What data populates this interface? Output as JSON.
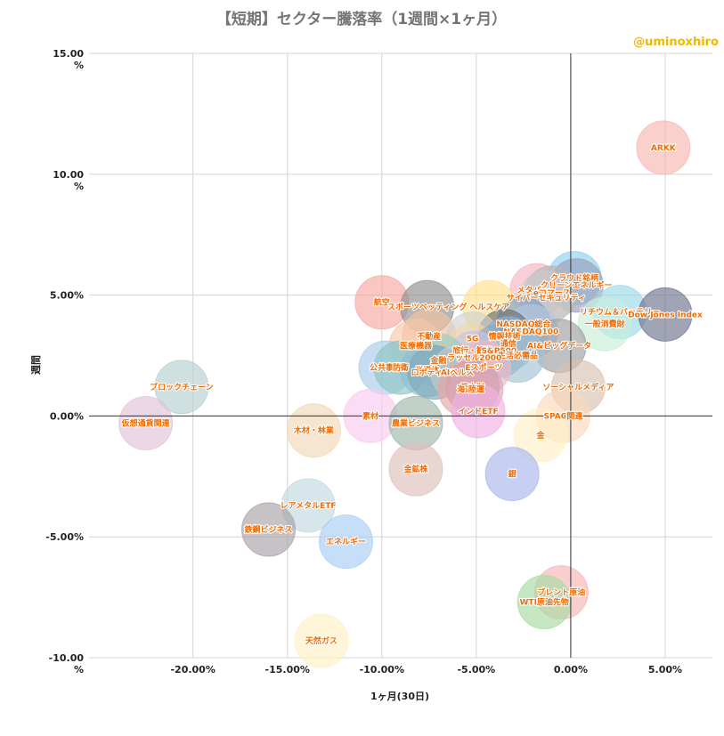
{
  "chart_data": {
    "type": "scatter",
    "title": "【短期】セクター騰落率（1週間×1ヶ月）",
    "handle": "@uminoxhiro",
    "xlabel": "1ヶ月(30日)",
    "ylabel": "週間",
    "xlim": [
      -25.5,
      7.5
    ],
    "ylim": [
      -10,
      15
    ],
    "x_ticks": [
      -20,
      -15,
      -10,
      -5,
      0,
      5
    ],
    "x_tick_labels": [
      "-20.00%",
      "-15.00%",
      "-10.00%",
      "-5.00%",
      "0.00%",
      "5.00%"
    ],
    "y_ticks": [
      15,
      10,
      5,
      0,
      -5,
      -10
    ],
    "y_tick_labels": [
      "15.00\n%",
      "10.00\n%",
      "5.00%",
      "0.00%",
      "-5.00%",
      "-10.00\n%"
    ],
    "grid": true,
    "points": [
      {
        "label": "ARKK",
        "x": 4.9,
        "y": 11.1,
        "color": "#f6b7b0"
      },
      {
        "label": "クラウド銘柄",
        "x": 0.2,
        "y": 5.7,
        "color": "#8fd0f0"
      },
      {
        "label": "クリーンエネルギー",
        "x": 0.3,
        "y": 5.4,
        "color": "#9aa0b8"
      },
      {
        "label": "メタバース",
        "x": -1.8,
        "y": 5.2,
        "color": "#f4b6c2"
      },
      {
        "label": "eコマース",
        "x": -1.0,
        "y": 5.1,
        "color": "#b7b7b7"
      },
      {
        "label": "サイバーセキュリティ",
        "x": -1.3,
        "y": 4.9,
        "color": "#c9c9c9"
      },
      {
        "label": "リチウム＆バッテリー",
        "x": 2.6,
        "y": 4.3,
        "color": "#9ad8ea"
      },
      {
        "label": "ヘルスケア",
        "x": -4.3,
        "y": 4.5,
        "color": "#ffe08a"
      },
      {
        "label": "航空",
        "x": -10.0,
        "y": 4.7,
        "color": "#f8a7a0"
      },
      {
        "label": "スポーツベッティング",
        "x": -7.6,
        "y": 4.5,
        "color": "#8f8f8f"
      },
      {
        "label": "NASDAQ総合",
        "x": -2.5,
        "y": 3.8,
        "color": "#7ea3c9"
      },
      {
        "label": "一般消費財",
        "x": 1.8,
        "y": 3.8,
        "color": "#c8eed8"
      },
      {
        "label": "NASDAQ100",
        "x": -2.1,
        "y": 3.5,
        "color": "#b4c6dc"
      },
      {
        "label": "Dow Jones Index",
        "x": 5.0,
        "y": 4.2,
        "color": "#6f738c"
      },
      {
        "label": "情報技術",
        "x": -3.5,
        "y": 3.3,
        "color": "#6d6d6d"
      },
      {
        "label": "不動産",
        "x": -7.5,
        "y": 3.3,
        "color": "#f3c3a0"
      },
      {
        "label": "5G",
        "x": -5.2,
        "y": 3.2,
        "color": "#d1d1d1"
      },
      {
        "label": "通信",
        "x": -3.3,
        "y": 3.0,
        "color": "#8ab2d4"
      },
      {
        "label": "医療機器",
        "x": -8.2,
        "y": 2.9,
        "color": "#f6c7a7"
      },
      {
        "label": "AI&ビッグデータ",
        "x": -0.6,
        "y": 2.9,
        "color": "#9e9e9e"
      },
      {
        "label": "旅行・観光",
        "x": -5.2,
        "y": 2.7,
        "color": "#f1d7a8"
      },
      {
        "label": "S&P500",
        "x": -3.8,
        "y": 2.7,
        "color": "#8fa6c5"
      },
      {
        "label": "生活必需品",
        "x": -2.8,
        "y": 2.5,
        "color": "#a4c3d6"
      },
      {
        "label": "ラッセル2000",
        "x": -5.1,
        "y": 2.4,
        "color": "#c9c3e0"
      },
      {
        "label": "金融",
        "x": -7.0,
        "y": 2.3,
        "color": "#99cdbe"
      },
      {
        "label": "公共事業",
        "x": -9.8,
        "y": 2.0,
        "color": "#a9cbe9"
      },
      {
        "label": "防衛",
        "x": -9.0,
        "y": 2.0,
        "color": "#8fc5c2"
      },
      {
        "label": "半導体",
        "x": -7.6,
        "y": 1.9,
        "color": "#8fbfd4"
      },
      {
        "label": "ロボティクス",
        "x": -7.2,
        "y": 1.8,
        "color": "#7fa7b9"
      },
      {
        "label": "AIヘルス",
        "x": -6.0,
        "y": 1.8,
        "color": "#c9c9c9"
      },
      {
        "label": "Eスポーツ",
        "x": -4.6,
        "y": 2.0,
        "color": "#f0b8c6"
      },
      {
        "label": "資本財",
        "x": -5.2,
        "y": 1.2,
        "color": "#c090a6"
      },
      {
        "label": "海運",
        "x": -5.6,
        "y": 1.1,
        "color": "#e4a6a6"
      },
      {
        "label": "陸運",
        "x": -5.0,
        "y": 1.1,
        "color": "#d9a9b9"
      },
      {
        "label": "ソーシャルメディア",
        "x": 0.4,
        "y": 1.2,
        "color": "#d9c2b0"
      },
      {
        "label": "ブロックチェーン",
        "x": -20.6,
        "y": 1.2,
        "color": "#b5cfcf"
      },
      {
        "label": "インドETF",
        "x": -4.9,
        "y": 0.2,
        "color": "#f0b1e4"
      },
      {
        "label": "SPAC関連",
        "x": -0.4,
        "y": 0.0,
        "color": "#fbd9bc"
      },
      {
        "label": "素材",
        "x": -10.6,
        "y": 0.0,
        "color": "#f8c9ef"
      },
      {
        "label": "仮想通貨関連",
        "x": -22.5,
        "y": -0.3,
        "color": "#e2c2d9"
      },
      {
        "label": "農業ビジネス",
        "x": -8.2,
        "y": -0.3,
        "color": "#9fb7aa"
      },
      {
        "label": "木材・林業",
        "x": -13.6,
        "y": -0.6,
        "color": "#f1d7b5"
      },
      {
        "label": "金",
        "x": -1.6,
        "y": -0.8,
        "color": "#fff0c8"
      },
      {
        "label": "金鉱株",
        "x": -8.2,
        "y": -2.2,
        "color": "#ddc0bb"
      },
      {
        "label": "銀",
        "x": -3.1,
        "y": -2.4,
        "color": "#a9b7ec"
      },
      {
        "label": "レアメタルETF",
        "x": -13.9,
        "y": -3.7,
        "color": "#c2d8de"
      },
      {
        "label": "鉄鋼ビジネス",
        "x": -16.0,
        "y": -4.7,
        "color": "#a8a1a8"
      },
      {
        "label": "エネルギー",
        "x": -11.9,
        "y": -5.2,
        "color": "#a9cdf5"
      },
      {
        "label": "ブレント原油",
        "x": -0.5,
        "y": -7.3,
        "color": "#f4b6b2"
      },
      {
        "label": "WTI原油先物",
        "x": -1.4,
        "y": -7.7,
        "color": "#a6dba2"
      },
      {
        "label": "天然ガス",
        "x": -13.2,
        "y": -9.3,
        "color": "#fff0c4"
      }
    ]
  }
}
